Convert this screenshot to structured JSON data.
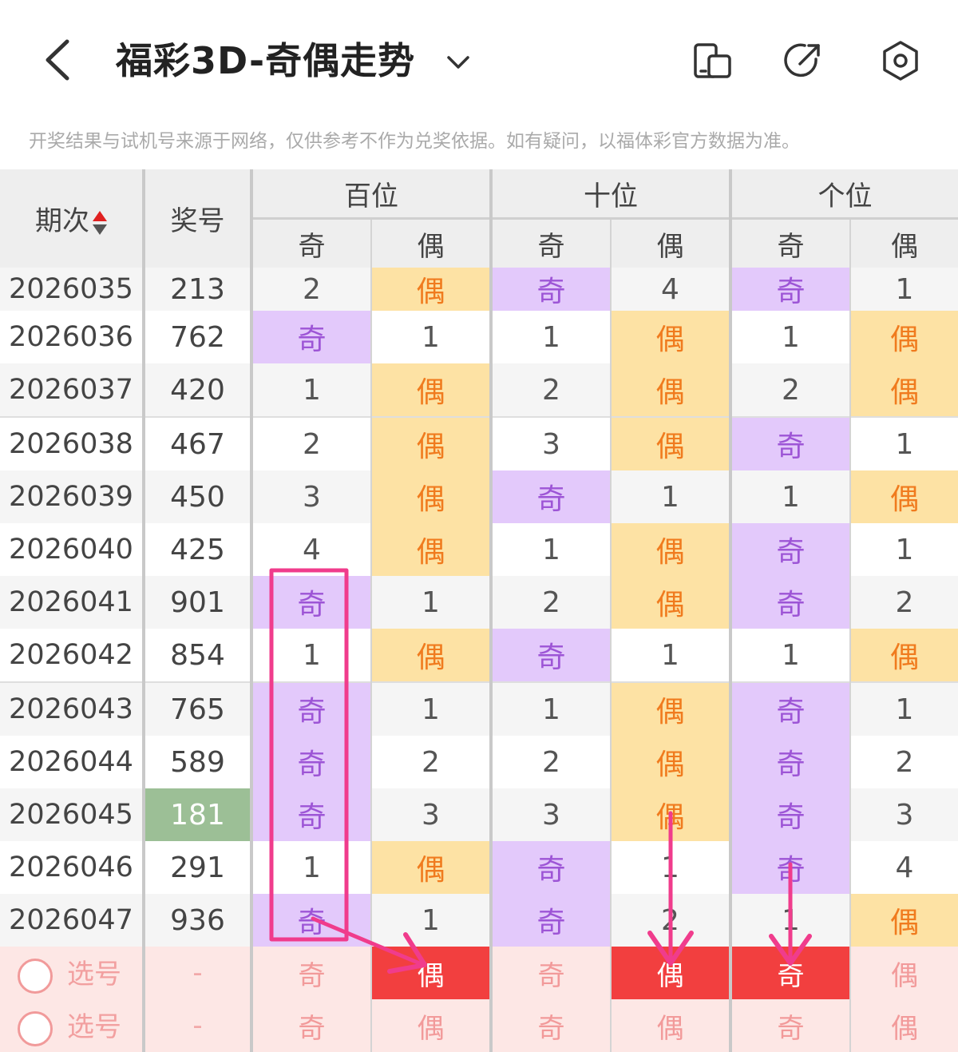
{
  "header": {
    "title": "福彩3D-奇偶走势",
    "icons": [
      "back-arrow-icon",
      "chevron-down-icon",
      "phone-split-icon",
      "share-icon",
      "settings-icon"
    ]
  },
  "disclaimer": "开奖结果与试机号来源于网络，仅供参考不作为兑奖依据。如有疑问，以福体彩官方数据为准。",
  "table": {
    "col_period": "期次",
    "col_prize": "奖号",
    "groups": [
      "百位",
      "十位",
      "个位"
    ],
    "odd_label": "奇",
    "even_label": "偶",
    "rows": [
      {
        "period": "2026035",
        "prize": "213",
        "cells": [
          "2",
          "偶",
          "奇",
          "4",
          "奇",
          "1"
        ],
        "types": [
          "n",
          "e",
          "o",
          "n",
          "o",
          "n"
        ]
      },
      {
        "period": "2026036",
        "prize": "762",
        "cells": [
          "奇",
          "1",
          "1",
          "偶",
          "1",
          "偶"
        ],
        "types": [
          "o",
          "n",
          "n",
          "e",
          "n",
          "e"
        ]
      },
      {
        "period": "2026037",
        "prize": "420",
        "cells": [
          "1",
          "偶",
          "2",
          "偶",
          "2",
          "偶"
        ],
        "types": [
          "n",
          "e",
          "n",
          "e",
          "n",
          "e"
        ]
      },
      {
        "period": "2026038",
        "prize": "467",
        "cells": [
          "2",
          "偶",
          "3",
          "偶",
          "奇",
          "1"
        ],
        "types": [
          "n",
          "e",
          "n",
          "e",
          "o",
          "n"
        ]
      },
      {
        "period": "2026039",
        "prize": "450",
        "cells": [
          "3",
          "偶",
          "奇",
          "1",
          "1",
          "偶"
        ],
        "types": [
          "n",
          "e",
          "o",
          "n",
          "n",
          "e"
        ]
      },
      {
        "period": "2026040",
        "prize": "425",
        "cells": [
          "4",
          "偶",
          "1",
          "偶",
          "奇",
          "1"
        ],
        "types": [
          "n",
          "e",
          "n",
          "e",
          "o",
          "n"
        ]
      },
      {
        "period": "2026041",
        "prize": "901",
        "cells": [
          "奇",
          "1",
          "2",
          "偶",
          "奇",
          "2"
        ],
        "types": [
          "o",
          "n",
          "n",
          "e",
          "o",
          "n"
        ]
      },
      {
        "period": "2026042",
        "prize": "854",
        "cells": [
          "1",
          "偶",
          "奇",
          "1",
          "1",
          "偶"
        ],
        "types": [
          "n",
          "e",
          "o",
          "n",
          "n",
          "e"
        ]
      },
      {
        "period": "2026043",
        "prize": "765",
        "cells": [
          "奇",
          "1",
          "1",
          "偶",
          "奇",
          "1"
        ],
        "types": [
          "o",
          "n",
          "n",
          "e",
          "o",
          "n"
        ]
      },
      {
        "period": "2026044",
        "prize": "589",
        "cells": [
          "奇",
          "2",
          "2",
          "偶",
          "奇",
          "2"
        ],
        "types": [
          "o",
          "n",
          "n",
          "e",
          "o",
          "n"
        ]
      },
      {
        "period": "2026045",
        "prize": "181",
        "cells": [
          "奇",
          "3",
          "3",
          "偶",
          "奇",
          "3"
        ],
        "types": [
          "o",
          "n",
          "n",
          "e",
          "o",
          "n"
        ],
        "highlight": true
      },
      {
        "period": "2026046",
        "prize": "291",
        "cells": [
          "1",
          "偶",
          "奇",
          "1",
          "奇",
          "4"
        ],
        "types": [
          "n",
          "e",
          "o",
          "n",
          "o",
          "n"
        ]
      },
      {
        "period": "2026047",
        "prize": "936",
        "cells": [
          "奇",
          "1",
          "奇",
          "2",
          "1",
          "偶"
        ],
        "types": [
          "o",
          "n",
          "o",
          "n",
          "n",
          "e"
        ]
      }
    ],
    "pick_rows": [
      {
        "label": "选号",
        "prize": "-",
        "cells": [
          "奇",
          "偶",
          "奇",
          "偶",
          "奇",
          "偶"
        ],
        "selected": [
          false,
          true,
          false,
          true,
          true,
          false
        ]
      },
      {
        "label": "选号",
        "prize": "-",
        "cells": [
          "奇",
          "偶",
          "奇",
          "偶",
          "奇",
          "偶"
        ],
        "selected": [
          false,
          false,
          false,
          false,
          false,
          false
        ]
      }
    ]
  },
  "annotation_color": "#f03c8c"
}
